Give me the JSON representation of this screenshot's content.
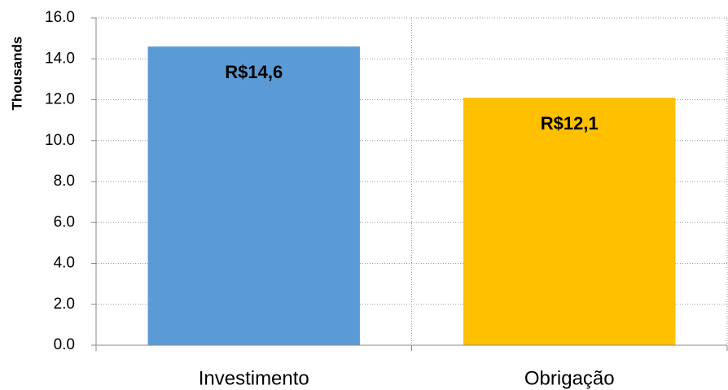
{
  "chart_data": {
    "type": "bar",
    "y_axis_label": "Thousands",
    "categories": [
      "Investimento",
      "Obrigação"
    ],
    "values": [
      14.6,
      12.1
    ],
    "value_labels": [
      "R$14,6",
      "R$12,1"
    ],
    "colors": [
      "#5b9bd5",
      "#ffc000"
    ],
    "ylim": [
      0,
      16
    ],
    "yticks": [
      {
        "value": 0,
        "label": "0.0"
      },
      {
        "value": 2,
        "label": "2.0"
      },
      {
        "value": 4,
        "label": "4.0"
      },
      {
        "value": 6,
        "label": "6.0"
      },
      {
        "value": 8,
        "label": "8.0"
      },
      {
        "value": 10,
        "label": "10.0"
      },
      {
        "value": 12,
        "label": "12.0"
      },
      {
        "value": 14,
        "label": "14.0"
      },
      {
        "value": 16,
        "label": "16.0"
      }
    ],
    "grid": true
  }
}
